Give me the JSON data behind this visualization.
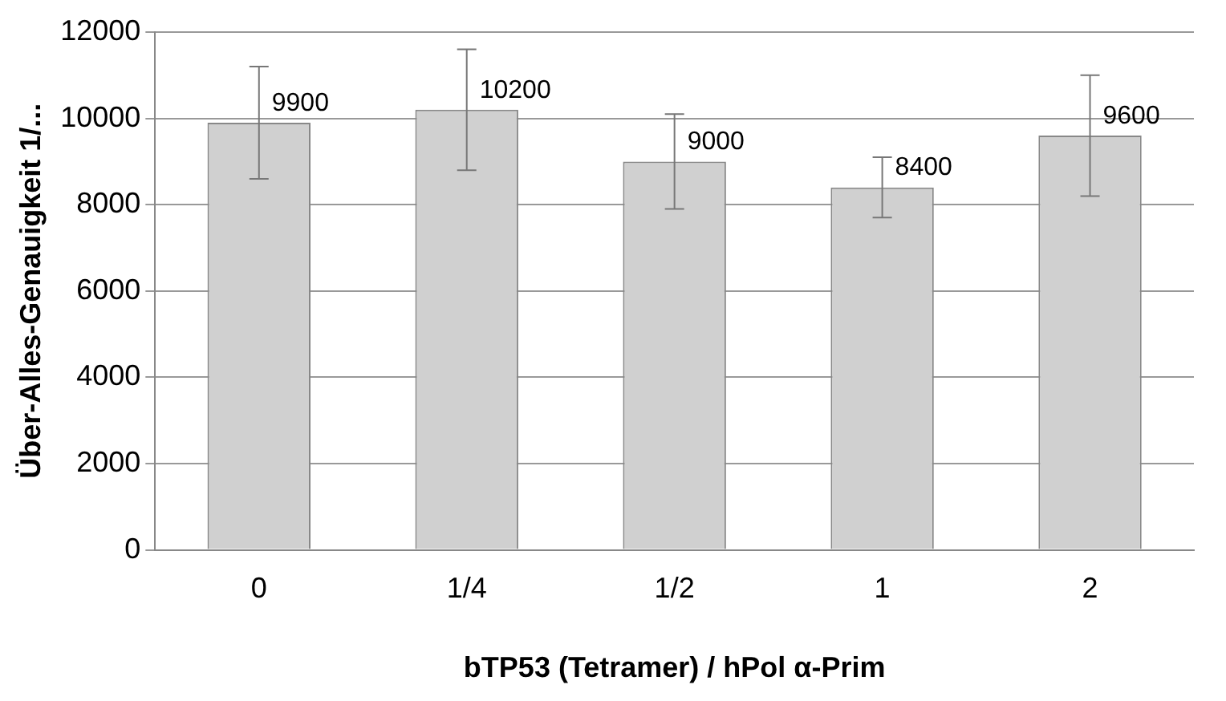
{
  "chart_data": {
    "type": "bar",
    "xlabel": "bTP53 (Tetramer) / hPol α-Prim",
    "ylabel": "Über-Alles-Genauigkeit 1/...",
    "categories": [
      "0",
      "1/4",
      "1/2",
      "1",
      "2"
    ],
    "values": [
      9900,
      10200,
      9000,
      8400,
      9600
    ],
    "errors": [
      1300,
      1400,
      1100,
      700,
      1400
    ],
    "color": "#d0d0d0",
    "ylim": [
      0,
      12000
    ],
    "yticks": [
      0,
      2000,
      4000,
      6000,
      8000,
      10000,
      12000
    ],
    "grid": "y",
    "data_labels": true
  }
}
